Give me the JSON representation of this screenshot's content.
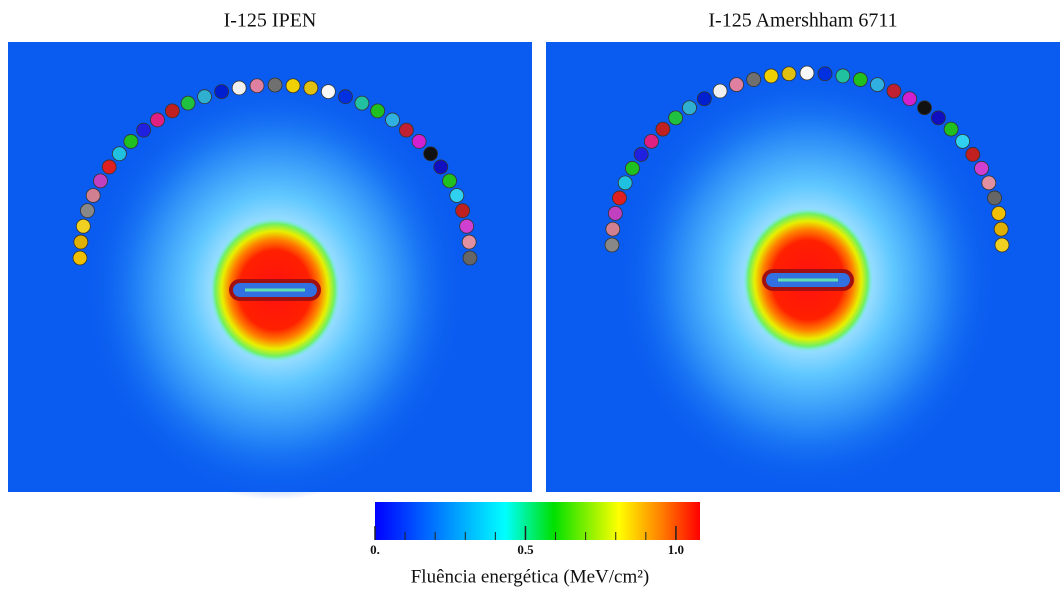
{
  "panels": [
    {
      "title": "I-125 IPEN"
    },
    {
      "title": "I-125 Amershham 6711"
    }
  ],
  "colorbar": {
    "label": "Fluência energética (MeV/cm²)",
    "lim": [
      0,
      1.08
    ],
    "ticks": [
      {
        "value": 0,
        "label": "0."
      },
      0.5,
      {
        "value": 1,
        "label": "1.0"
      }
    ]
  }
}
